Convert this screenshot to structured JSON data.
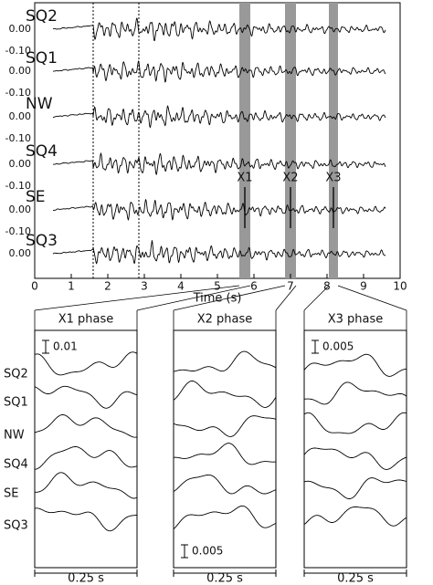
{
  "top": {
    "traces": [
      "SQ2",
      "SQ1",
      "NW",
      "SQ4",
      "SE",
      "SQ3"
    ],
    "tick_labels": [
      "0.00",
      "-0.10"
    ],
    "xlim": [
      0,
      10
    ],
    "xticks": [
      0,
      1,
      2,
      3,
      4,
      5,
      6,
      7,
      8,
      9,
      10
    ],
    "xlabel": "Time (s)",
    "dashed_lines": [
      1.6,
      2.85
    ],
    "phases": [
      {
        "label": "X1",
        "start": 5.6,
        "end": 5.9
      },
      {
        "label": "X2",
        "start": 6.85,
        "end": 7.15
      },
      {
        "label": "X3",
        "start": 8.05,
        "end": 8.3
      }
    ]
  },
  "panels": [
    {
      "title": "X1 phase",
      "scale": {
        "label": "0.01",
        "position": "top"
      },
      "duration": "0.25 s"
    },
    {
      "title": "X2 phase",
      "scale": {
        "label": "0.005",
        "position": "bottom"
      },
      "duration": "0.25 s"
    },
    {
      "title": "X3 phase",
      "scale": {
        "label": "0.005",
        "position": "top"
      },
      "duration": "0.25 s"
    }
  ],
  "row_labels": [
    "SQ2",
    "SQ1",
    "NW",
    "SQ4",
    "SE",
    "SQ3"
  ]
}
